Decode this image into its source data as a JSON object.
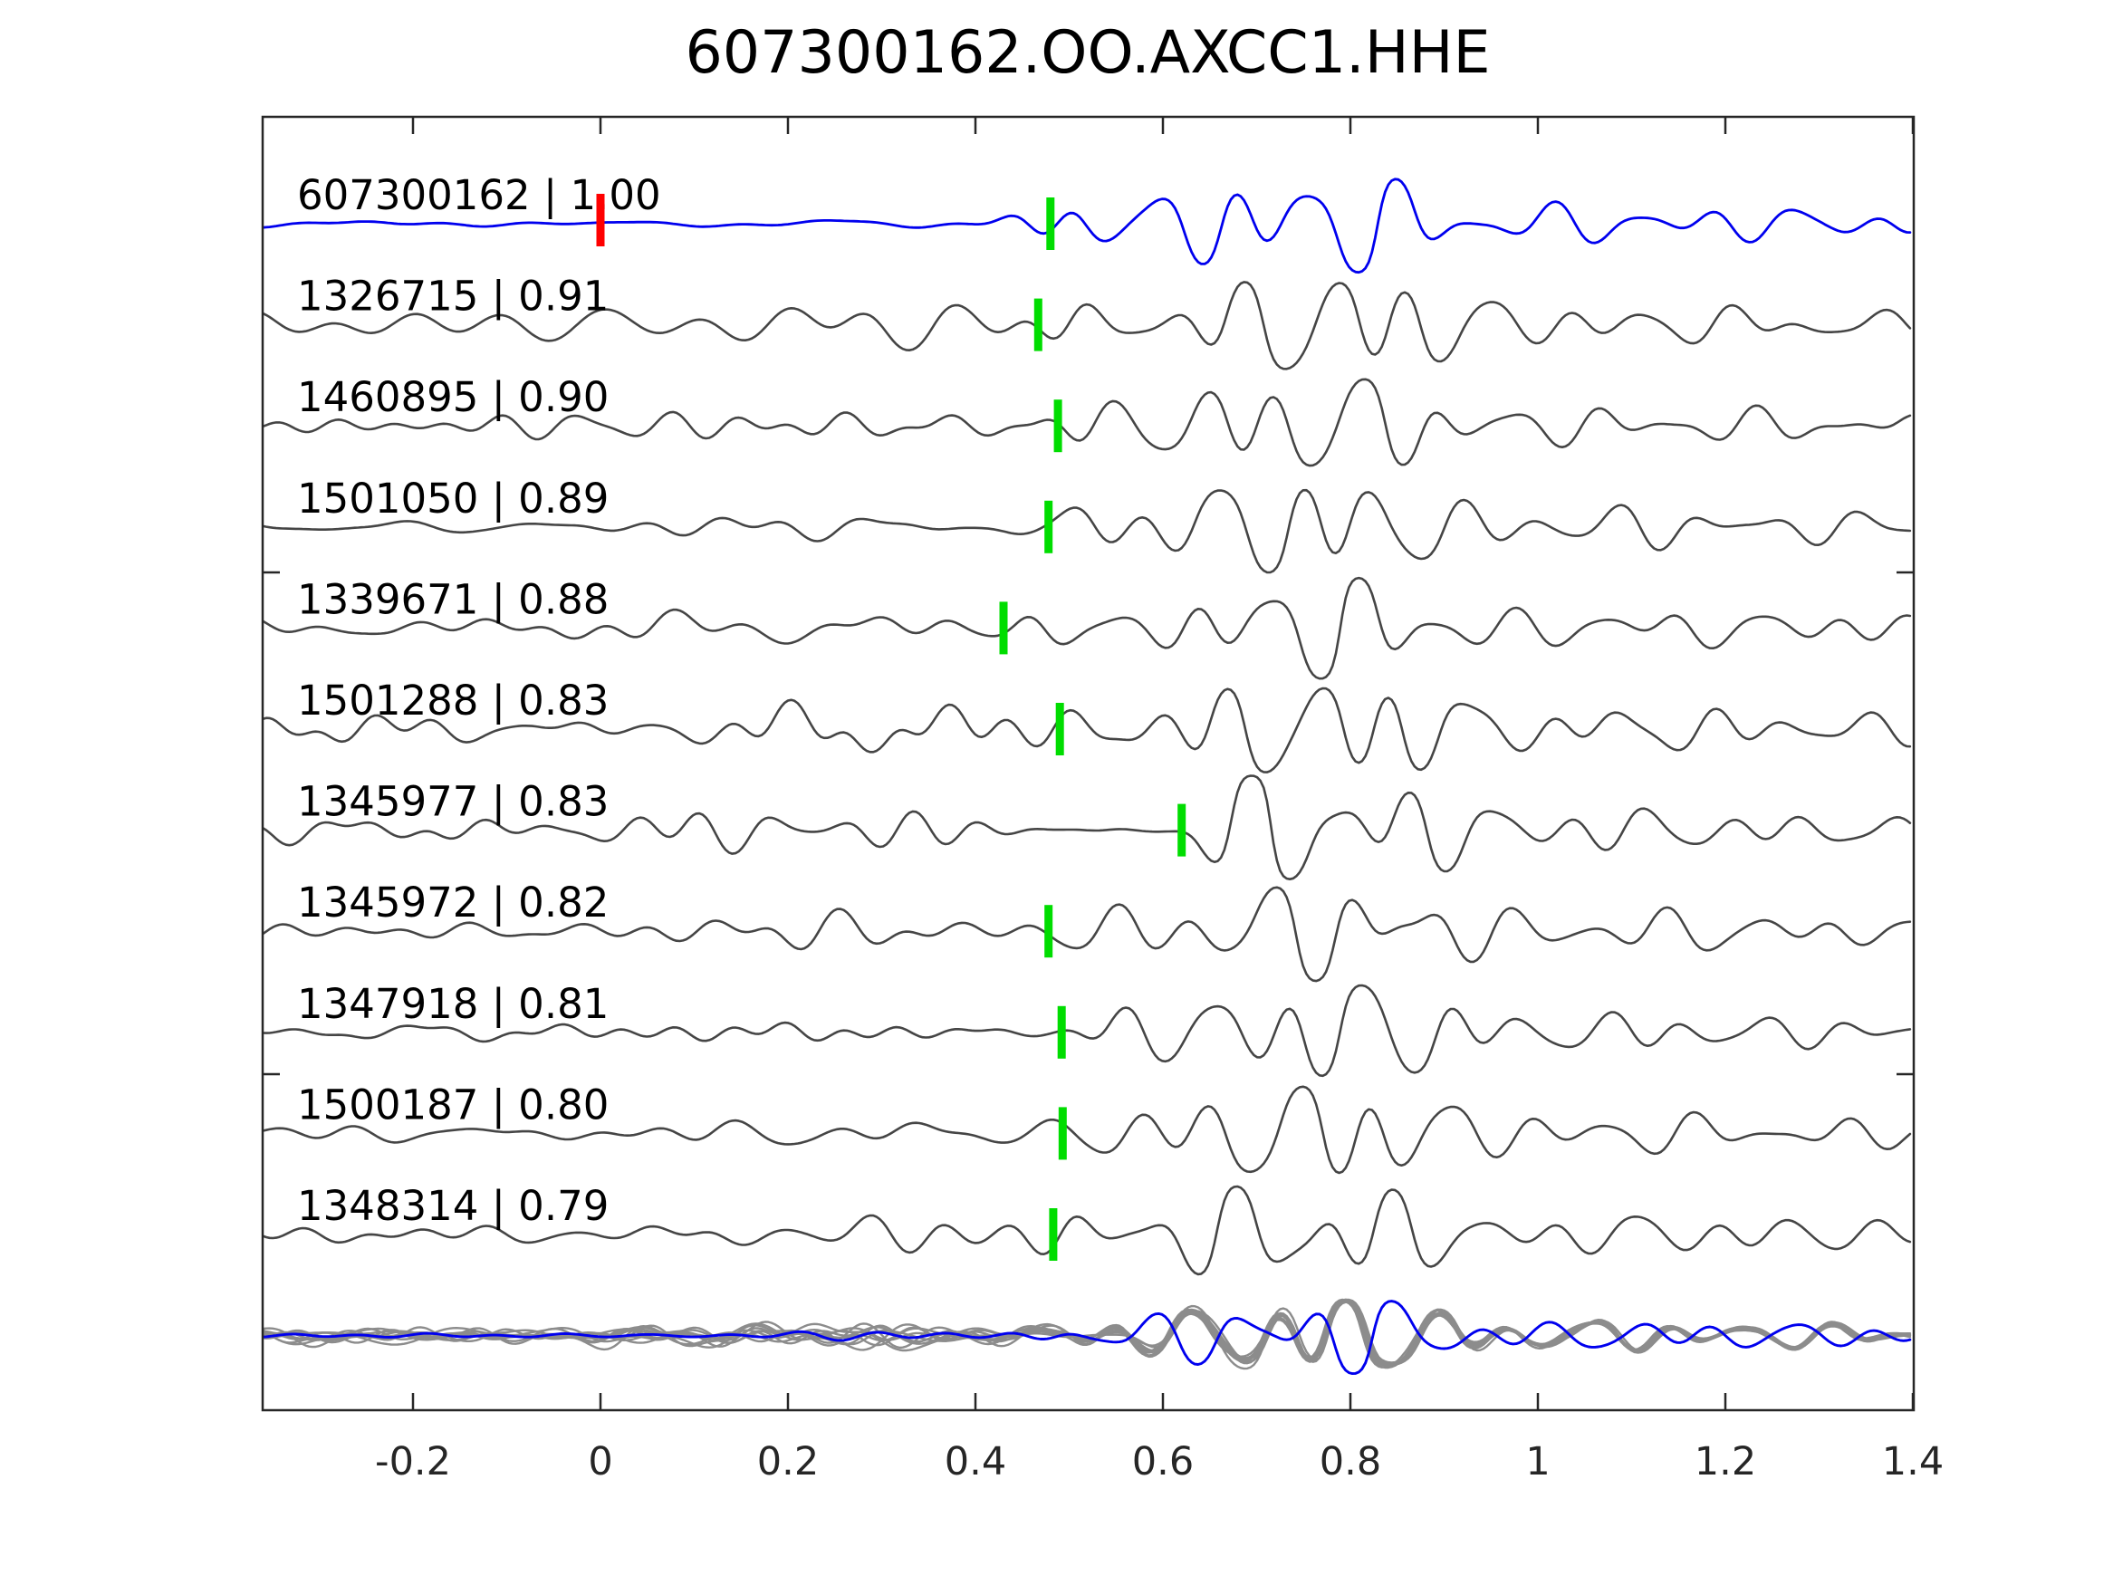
{
  "chart_data": {
    "type": "line",
    "subtype": "seismic-waveform-stack",
    "title": "607300162.OO.AXCC1.HHE",
    "xlabel": "",
    "ylabel": "",
    "xlim": [
      -0.36,
      1.4
    ],
    "xticks": [
      -0.2,
      0,
      0.2,
      0.4,
      0.6,
      0.8,
      1,
      1.2,
      1.4
    ],
    "xtick_labels": [
      "-0.2",
      "0",
      "0.2",
      "0.4",
      "0.6",
      "0.8",
      "1",
      "1.2",
      "1.4"
    ],
    "grid": false,
    "legend": false,
    "colors": {
      "reference_trace": "#0000ee",
      "trace": "#454545",
      "overlay_trace": "#8c8c8c",
      "reference_pick": "#ff0000",
      "match_pick": "#00dd00",
      "axis": "#262626",
      "text": "#000000",
      "background": "#ffffff"
    },
    "traces": [
      {
        "id": "607300162",
        "cc": "1.00",
        "label": "607300162 | 1.00",
        "is_reference": true,
        "ref_pick_x": 0.0,
        "pick_x": 0.48,
        "noise": 0.28,
        "seed": 101
      },
      {
        "id": "1326715",
        "cc": "0.91",
        "label": "1326715 | 0.91",
        "is_reference": false,
        "pick_x": 0.467,
        "noise": 1.35,
        "seed": 202
      },
      {
        "id": "1460895",
        "cc": "0.90",
        "label": "1460895 | 0.90",
        "is_reference": false,
        "pick_x": 0.488,
        "noise": 1.0,
        "seed": 303
      },
      {
        "id": "1501050",
        "cc": "0.89",
        "label": "1501050 | 0.89",
        "is_reference": false,
        "pick_x": 0.478,
        "noise": 0.95,
        "seed": 404
      },
      {
        "id": "1339671",
        "cc": "0.88",
        "label": "1339671 | 0.88",
        "is_reference": false,
        "pick_x": 0.43,
        "noise": 1.15,
        "seed": 505
      },
      {
        "id": "1501288",
        "cc": "0.83",
        "label": "1501288 | 0.83",
        "is_reference": false,
        "pick_x": 0.49,
        "noise": 1.65,
        "seed": 606
      },
      {
        "id": "1345977",
        "cc": "0.83",
        "label": "1345977 | 0.83",
        "is_reference": false,
        "pick_x": 0.62,
        "noise": 1.25,
        "seed": 707
      },
      {
        "id": "1345972",
        "cc": "0.82",
        "label": "1345972 | 0.82",
        "is_reference": false,
        "pick_x": 0.478,
        "noise": 1.0,
        "seed": 808
      },
      {
        "id": "1347918",
        "cc": "0.81",
        "label": "1347918 | 0.81",
        "is_reference": false,
        "pick_x": 0.492,
        "noise": 0.9,
        "seed": 909
      },
      {
        "id": "1500187",
        "cc": "0.80",
        "label": "1500187 | 0.80",
        "is_reference": false,
        "pick_x": 0.493,
        "noise": 0.85,
        "seed": 1010
      },
      {
        "id": "1348314",
        "cc": "0.79",
        "label": "1348314 | 0.79",
        "is_reference": false,
        "pick_x": 0.483,
        "noise": 0.9,
        "seed": 1111
      }
    ],
    "overlay_row": {
      "description": "all matched traces superimposed in gray with reference trace in blue",
      "includes_reference": true
    }
  }
}
